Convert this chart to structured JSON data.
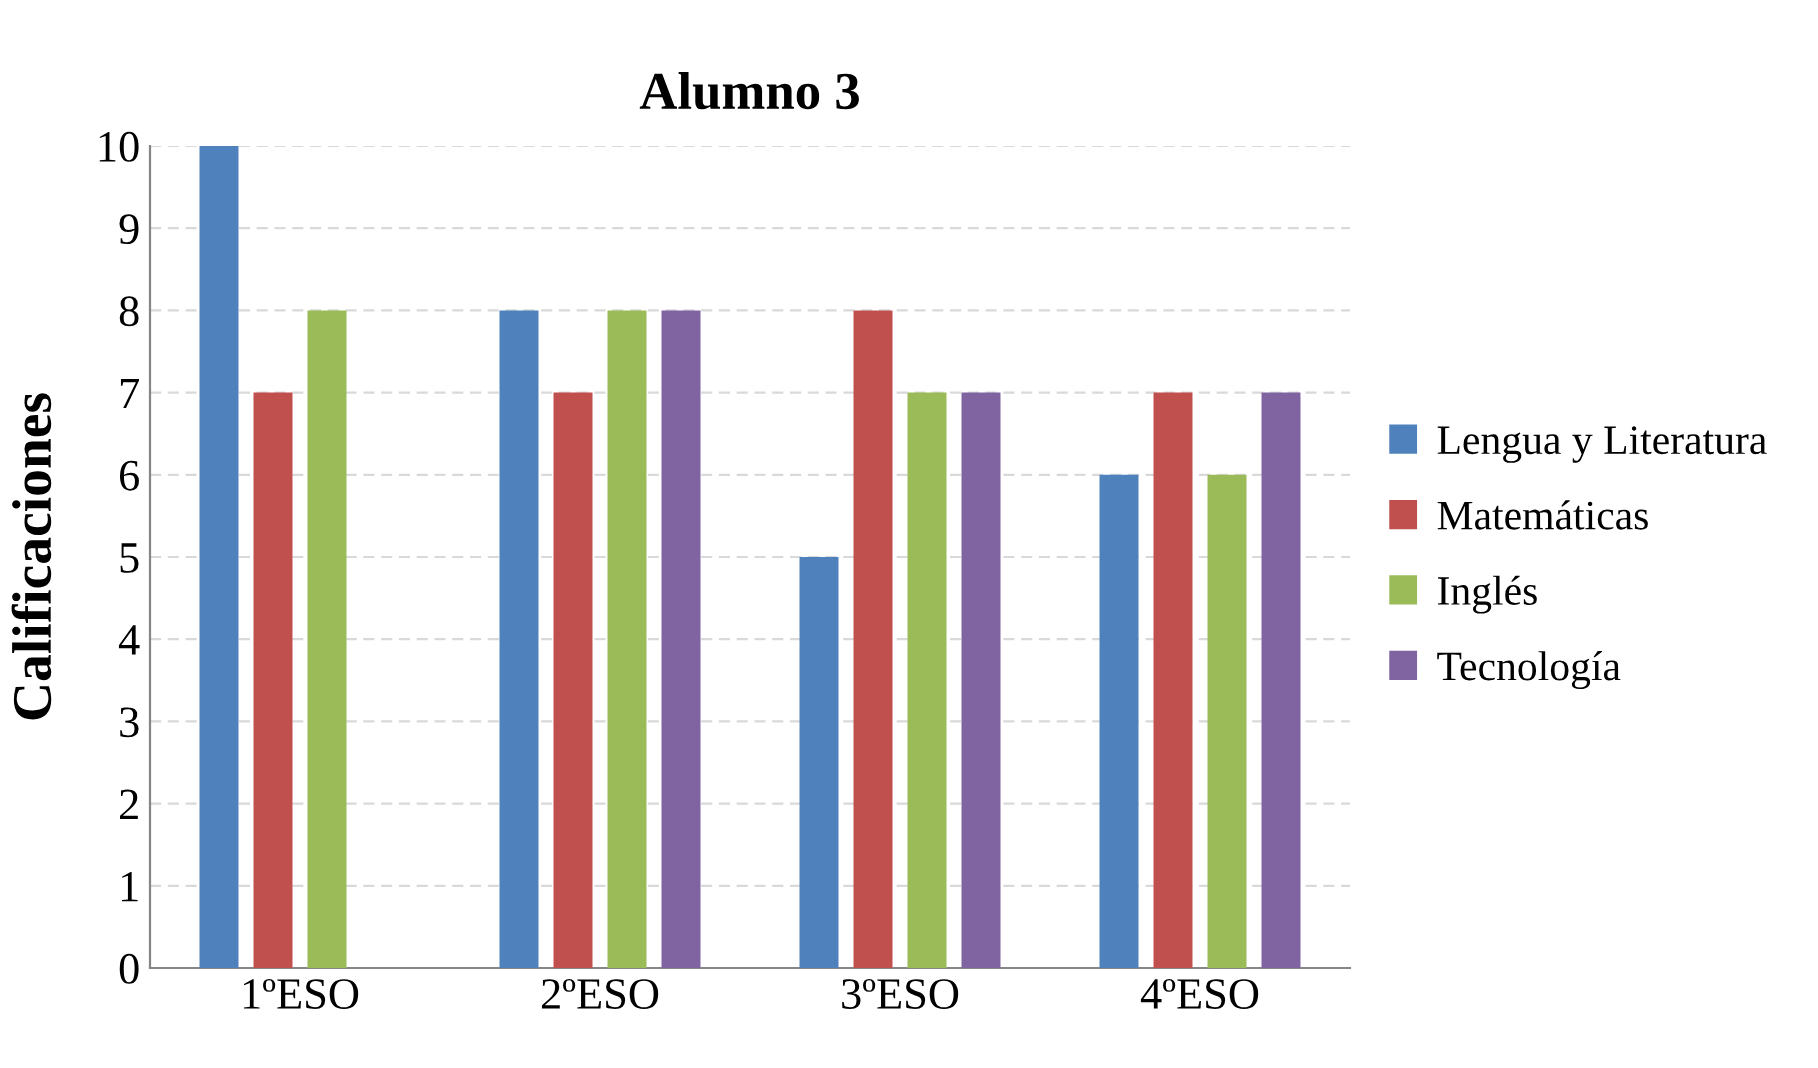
{
  "chart_data": {
    "type": "bar",
    "title": "Alumno 3",
    "ylabel": "Calificaciones",
    "categories": [
      "1ºESO",
      "2ºESO",
      "3ºESO",
      "4ºESO"
    ],
    "series": [
      {
        "name": "Lengua y Literatura",
        "color": "#4f81bd",
        "values": [
          10,
          8,
          5,
          6
        ]
      },
      {
        "name": "Matemáticas",
        "color": "#c0504d",
        "values": [
          7,
          7,
          8,
          7
        ]
      },
      {
        "name": "Inglés",
        "color": "#9bbb59",
        "values": [
          8,
          8,
          7,
          6
        ]
      },
      {
        "name": "Tecnología",
        "color": "#8064a2",
        "values": [
          null,
          8,
          7,
          7
        ]
      }
    ],
    "ylim": [
      0,
      10
    ],
    "yticks": [
      0,
      1,
      2,
      3,
      4,
      5,
      6,
      7,
      8,
      9,
      10
    ],
    "grid": "y",
    "legend": "right"
  }
}
